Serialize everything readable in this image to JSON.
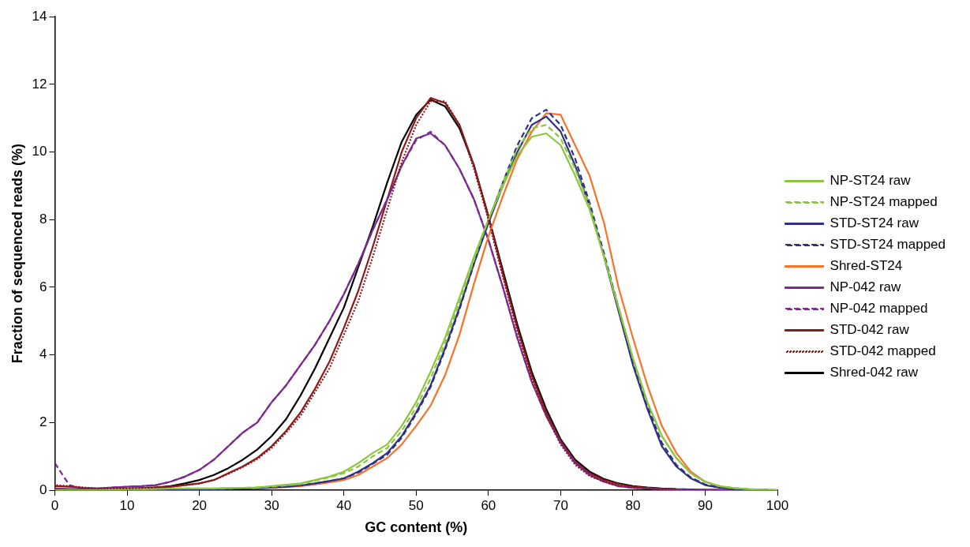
{
  "chart_data": {
    "type": "line",
    "xlabel": "GC content (%)",
    "ylabel": "Fraction of sequenced reads (%)",
    "x": [
      0,
      2,
      4,
      6,
      8,
      10,
      12,
      14,
      16,
      18,
      20,
      22,
      24,
      26,
      28,
      30,
      32,
      34,
      36,
      38,
      40,
      42,
      44,
      46,
      48,
      50,
      52,
      54,
      56,
      58,
      60,
      62,
      64,
      66,
      68,
      70,
      72,
      74,
      76,
      78,
      80,
      82,
      84,
      86,
      88,
      90,
      92,
      94,
      96,
      98,
      100
    ],
    "xlim": [
      0,
      100
    ],
    "xticks": [
      0,
      10,
      20,
      30,
      40,
      50,
      60,
      70,
      80,
      90,
      100
    ],
    "ylim": [
      0,
      14
    ],
    "yticks": [
      0,
      2,
      4,
      6,
      8,
      10,
      12,
      14
    ],
    "grid": false,
    "legend": "right",
    "series": [
      {
        "name": "NP-ST24 raw",
        "color": "#8cc63f",
        "line_style": "solid",
        "values": [
          0,
          0,
          0,
          0,
          0.02,
          0.03,
          0.03,
          0.04,
          0.05,
          0.05,
          0.05,
          0.05,
          0.06,
          0.07,
          0.08,
          0.12,
          0.16,
          0.2,
          0.3,
          0.4,
          0.55,
          0.8,
          1.1,
          1.35,
          1.9,
          2.6,
          3.5,
          4.5,
          5.7,
          6.9,
          8.0,
          9.0,
          9.9,
          10.45,
          10.55,
          10.2,
          9.3,
          8.3,
          6.9,
          5.4,
          3.9,
          2.6,
          1.6,
          0.95,
          0.5,
          0.25,
          0.12,
          0.06,
          0.03,
          0.01,
          0
        ]
      },
      {
        "name": "NP-ST24 mapped",
        "color": "#8cc63f",
        "line_style": "dashed",
        "values": [
          0,
          0,
          0,
          0,
          0.02,
          0.03,
          0.03,
          0.04,
          0.05,
          0.05,
          0.05,
          0.05,
          0.06,
          0.07,
          0.08,
          0.1,
          0.14,
          0.18,
          0.28,
          0.38,
          0.5,
          0.7,
          1.0,
          1.25,
          1.75,
          2.45,
          3.3,
          4.35,
          5.55,
          6.8,
          8.0,
          9.1,
          10.1,
          10.7,
          10.8,
          10.4,
          9.5,
          8.4,
          6.9,
          5.4,
          3.9,
          2.6,
          1.6,
          0.95,
          0.5,
          0.25,
          0.12,
          0.06,
          0.03,
          0.01,
          0
        ]
      },
      {
        "name": "STD-ST24 raw",
        "color": "#2e3184",
        "line_style": "solid",
        "values": [
          0,
          0,
          0,
          0,
          0,
          0.01,
          0.01,
          0.02,
          0.02,
          0.03,
          0.03,
          0.03,
          0.04,
          0.05,
          0.06,
          0.08,
          0.1,
          0.14,
          0.2,
          0.27,
          0.35,
          0.55,
          0.8,
          1.1,
          1.6,
          2.3,
          3.1,
          4.2,
          5.4,
          6.7,
          7.9,
          9.0,
          10.0,
          10.8,
          11.05,
          10.6,
          9.6,
          8.4,
          6.9,
          5.3,
          3.7,
          2.4,
          1.3,
          0.7,
          0.35,
          0.15,
          0.07,
          0.03,
          0.02,
          0.01,
          0
        ]
      },
      {
        "name": "STD-ST24 mapped",
        "color": "#2e3184",
        "line_style": "dashed",
        "values": [
          0,
          0,
          0,
          0,
          0,
          0.01,
          0.01,
          0.02,
          0.02,
          0.03,
          0.03,
          0.03,
          0.04,
          0.05,
          0.06,
          0.08,
          0.1,
          0.14,
          0.2,
          0.27,
          0.35,
          0.52,
          0.78,
          1.05,
          1.55,
          2.25,
          3.05,
          4.15,
          5.35,
          6.7,
          7.95,
          9.1,
          10.2,
          11.0,
          11.25,
          10.8,
          9.8,
          8.5,
          7.0,
          5.4,
          3.8,
          2.5,
          1.4,
          0.75,
          0.38,
          0.17,
          0.08,
          0.03,
          0.02,
          0.01,
          0
        ]
      },
      {
        "name": "Shred-ST24",
        "color": "#f7722a",
        "line_style": "solid",
        "values": [
          null,
          null,
          null,
          null,
          null,
          null,
          null,
          null,
          null,
          null,
          null,
          null,
          null,
          null,
          0.05,
          0.07,
          0.09,
          0.12,
          0.17,
          0.23,
          0.3,
          0.45,
          0.7,
          0.95,
          1.35,
          1.9,
          2.5,
          3.4,
          4.6,
          6.1,
          7.5,
          8.7,
          9.8,
          10.6,
          11.15,
          11.1,
          10.2,
          9.3,
          7.9,
          6.0,
          4.5,
          3.1,
          1.9,
          1.1,
          0.55,
          0.25,
          0.1,
          null,
          null,
          null,
          null
        ]
      },
      {
        "name": "NP-042 raw",
        "color": "#7b2a8e",
        "line_style": "solid",
        "values": [
          0.05,
          0.03,
          0.03,
          0.05,
          0.08,
          0.1,
          0.12,
          0.15,
          0.25,
          0.4,
          0.6,
          0.9,
          1.3,
          1.7,
          2.0,
          2.6,
          3.1,
          3.7,
          4.3,
          5.0,
          5.8,
          6.7,
          7.7,
          8.6,
          9.6,
          10.4,
          10.55,
          10.2,
          9.5,
          8.6,
          7.4,
          6.0,
          4.5,
          3.2,
          2.2,
          1.4,
          0.8,
          0.45,
          0.25,
          0.12,
          0.07,
          0.05,
          0.03,
          0.02,
          0.01,
          0.01,
          0,
          0,
          0,
          null,
          null
        ]
      },
      {
        "name": "NP-042 mapped",
        "color": "#7b2a8e",
        "line_style": "dashed",
        "values": [
          0.8,
          0.15,
          0.03,
          0.05,
          0.08,
          0.1,
          0.12,
          0.15,
          0.25,
          0.4,
          0.6,
          0.9,
          1.3,
          1.7,
          2.0,
          2.6,
          3.1,
          3.7,
          4.3,
          5.0,
          5.8,
          6.7,
          7.7,
          8.6,
          9.6,
          10.35,
          10.6,
          10.2,
          9.5,
          8.6,
          7.4,
          6.0,
          4.5,
          3.2,
          2.2,
          1.4,
          0.8,
          0.45,
          0.25,
          0.12,
          0.07,
          0.05,
          0.03,
          0.02,
          0.01,
          0.01,
          0,
          0,
          0,
          null,
          null
        ]
      },
      {
        "name": "STD-042 raw",
        "color": "#8b1a1a",
        "line_style": "solid",
        "values": [
          0.12,
          0.1,
          0.07,
          0.05,
          0.05,
          0.05,
          0.06,
          0.08,
          0.1,
          0.15,
          0.2,
          0.3,
          0.5,
          0.7,
          0.95,
          1.3,
          1.75,
          2.3,
          3.0,
          3.8,
          4.8,
          5.9,
          7.2,
          8.6,
          10.0,
          11.0,
          11.6,
          11.45,
          10.8,
          9.6,
          8.1,
          6.4,
          4.8,
          3.4,
          2.3,
          1.45,
          0.85,
          0.5,
          0.3,
          0.18,
          0.1,
          0.07,
          0.04,
          0.02,
          null,
          null,
          null,
          null,
          null,
          null,
          null
        ]
      },
      {
        "name": "STD-042 mapped",
        "color": "#8b1a1a",
        "line_style": "dotted",
        "values": [
          0.15,
          0.12,
          0.08,
          0.05,
          0.05,
          0.05,
          0.06,
          0.08,
          0.1,
          0.15,
          0.2,
          0.3,
          0.48,
          0.68,
          0.92,
          1.25,
          1.7,
          2.2,
          2.9,
          3.6,
          4.6,
          5.6,
          6.9,
          8.3,
          9.7,
          10.8,
          11.5,
          11.5,
          10.8,
          9.5,
          8.0,
          6.3,
          4.7,
          3.3,
          2.2,
          1.35,
          0.75,
          0.42,
          0.25,
          0.14,
          0.08,
          0.05,
          0.03,
          0.02,
          null,
          null,
          null,
          null,
          null,
          null,
          null
        ]
      },
      {
        "name": "Shred-042 raw",
        "color": "#000000",
        "line_style": "solid",
        "values": [
          0,
          0,
          0.01,
          0.02,
          0.03,
          0.04,
          0.06,
          0.08,
          0.12,
          0.2,
          0.3,
          0.45,
          0.65,
          0.9,
          1.2,
          1.6,
          2.1,
          2.8,
          3.6,
          4.5,
          5.4,
          6.6,
          7.8,
          9.1,
          10.3,
          11.1,
          11.55,
          11.35,
          10.7,
          9.6,
          8.1,
          6.5,
          4.9,
          3.5,
          2.4,
          1.5,
          0.9,
          0.55,
          0.33,
          0.2,
          0.12,
          0.08,
          0.05,
          0.03,
          0.02,
          0.01,
          0.01,
          0,
          0,
          0,
          0
        ]
      }
    ]
  }
}
